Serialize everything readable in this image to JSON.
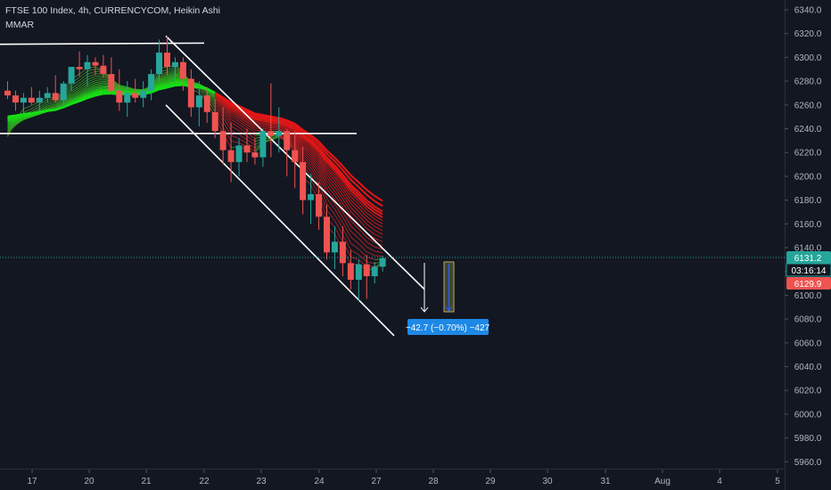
{
  "header": {
    "title": "FTSE 100 Index, 4h, CURRENCYCOM, Heikin Ashi",
    "indicator": "MMAR"
  },
  "price_axis": {
    "last_price": "6131.2",
    "countdown": "03:16:14",
    "marker_price": "6129.9"
  },
  "measure_label": "−42.7 (−0.70%) −427",
  "colors": {
    "background": "#131722",
    "up": "#26a69a",
    "down": "#ef5350",
    "ribbon_green": "#00c800",
    "ribbon_red": "#d10000",
    "last_price_tag": "#26a69a",
    "marker_tag": "#ef5350",
    "measure_box": "#2962ff"
  },
  "chart_data": {
    "type": "candlestick",
    "y_ticks": [
      6340,
      6320,
      6300,
      6280,
      6260,
      6240,
      6220,
      6200,
      6180,
      6160,
      6140,
      6120,
      6100,
      6080,
      6060,
      6040,
      6020,
      6000,
      5980,
      5960
    ],
    "ylim": [
      5955,
      6345
    ],
    "x_ticks": [
      "17",
      "20",
      "21",
      "22",
      "23",
      "24",
      "27",
      "28",
      "29",
      "30",
      "31",
      "Aug",
      "4",
      "5"
    ],
    "grid": false,
    "candles": [
      [
        6272,
        6280,
        6265,
        6268
      ],
      [
        6268,
        6272,
        6255,
        6262
      ],
      [
        6262,
        6270,
        6250,
        6266
      ],
      [
        6266,
        6275,
        6260,
        6262
      ],
      [
        6262,
        6272,
        6255,
        6266
      ],
      [
        6266,
        6275,
        6262,
        6270
      ],
      [
        6270,
        6285,
        6262,
        6264
      ],
      [
        6264,
        6280,
        6258,
        6278
      ],
      [
        6278,
        6290,
        6272,
        6292
      ],
      [
        6292,
        6305,
        6284,
        6290
      ],
      [
        6290,
        6302,
        6276,
        6296
      ],
      [
        6296,
        6300,
        6285,
        6293
      ],
      [
        6293,
        6302,
        6283,
        6286
      ],
      [
        6286,
        6300,
        6270,
        6272
      ],
      [
        6272,
        6290,
        6255,
        6262
      ],
      [
        6262,
        6280,
        6250,
        6270
      ],
      [
        6270,
        6282,
        6262,
        6266
      ],
      [
        6266,
        6280,
        6258,
        6272
      ],
      [
        6272,
        6290,
        6264,
        6286
      ],
      [
        6286,
        6315,
        6280,
        6304
      ],
      [
        6304,
        6318,
        6285,
        6292
      ],
      [
        6292,
        6300,
        6280,
        6296
      ],
      [
        6296,
        6300,
        6272,
        6282
      ],
      [
        6282,
        6290,
        6250,
        6258
      ],
      [
        6258,
        6280,
        6242,
        6268
      ],
      [
        6268,
        6275,
        6245,
        6254
      ],
      [
        6254,
        6265,
        6232,
        6238
      ],
      [
        6238,
        6258,
        6210,
        6222
      ],
      [
        6222,
        6245,
        6195,
        6212
      ],
      [
        6212,
        6232,
        6200,
        6226
      ],
      [
        6226,
        6240,
        6212,
        6220
      ],
      [
        6220,
        6232,
        6210,
        6216
      ],
      [
        6216,
        6240,
        6208,
        6238
      ],
      [
        6238,
        6278,
        6216,
        6234
      ],
      [
        6234,
        6258,
        6220,
        6238
      ],
      [
        6238,
        6240,
        6200,
        6222
      ],
      [
        6222,
        6238,
        6190,
        6212
      ],
      [
        6212,
        6225,
        6168,
        6180
      ],
      [
        6180,
        6202,
        6160,
        6185
      ],
      [
        6185,
        6195,
        6155,
        6166
      ],
      [
        6166,
        6176,
        6130,
        6136
      ],
      [
        6136,
        6158,
        6122,
        6145
      ],
      [
        6145,
        6158,
        6116,
        6127
      ],
      [
        6127,
        6138,
        6105,
        6113
      ],
      [
        6113,
        6130,
        6095,
        6126
      ],
      [
        6126,
        6134,
        6097,
        6116
      ],
      [
        6116,
        6128,
        6110,
        6124
      ],
      [
        6124,
        6133,
        6120,
        6131.2
      ]
    ],
    "trendlines": [
      {
        "from": [
          "17",
          6311
        ],
        "to": [
          "22",
          6312
        ]
      },
      {
        "from": [
          "17",
          6236
        ],
        "to": [
          "23",
          6236
        ]
      },
      {
        "from": [
          "21",
          6318
        ],
        "to": [
          "28",
          6105
        ]
      },
      {
        "from": [
          "21",
          6260
        ],
        "to": [
          "28",
          6066
        ]
      }
    ],
    "price_range": {
      "from": 6131.2,
      "to": 6088.5,
      "change": -42.7,
      "percent": -0.7,
      "ticks": -427
    }
  }
}
